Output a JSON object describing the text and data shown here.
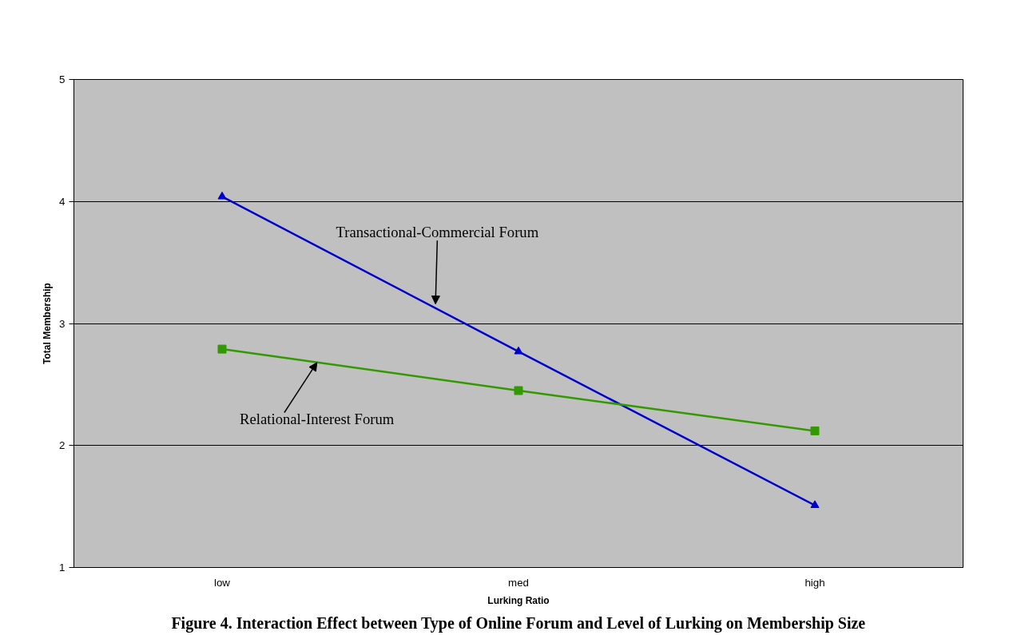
{
  "chart_data": {
    "type": "line",
    "title": "Figure 4. Interaction Effect between Type of Online Forum and Level of Lurking on Membership Size",
    "xlabel": "Lurking Ratio",
    "ylabel": "Total Membership",
    "categories": [
      "low",
      "med",
      "high"
    ],
    "series": [
      {
        "values": [
          4.04,
          2.77,
          1.51
        ],
        "color": "#0000cc",
        "marker": "triangle"
      },
      {
        "values": [
          2.79,
          2.45,
          2.12
        ],
        "color": "#339900",
        "marker": "square"
      }
    ],
    "annotations": [
      {
        "text": "Transactional-Commercial Forum",
        "y": 3.16
      },
      {
        "text": "Relational-Interest Forum",
        "y": 2.68
      }
    ],
    "ylim": [
      1,
      5
    ],
    "yticks": [
      1,
      2,
      3,
      4,
      5
    ],
    "grid": "y"
  }
}
